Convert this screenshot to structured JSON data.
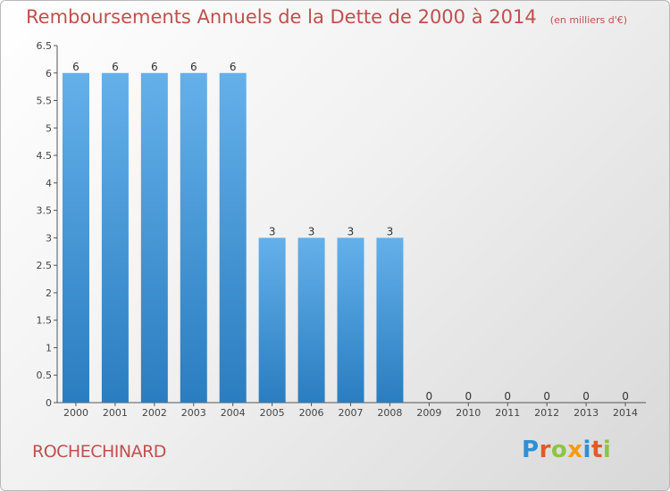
{
  "title": "Remboursements Annuels de la Dette de 2000 à 2014",
  "unit": "(en milliers d'€)",
  "commune": "ROCHECHINARD",
  "logo": {
    "text": "Proxiti",
    "letters": [
      {
        "char": "P",
        "color": "#2e8fd6"
      },
      {
        "char": "r",
        "color": "#e05a2a"
      },
      {
        "char": "o",
        "color": "#8cc63f"
      },
      {
        "char": "x",
        "color": "#f39c12"
      },
      {
        "char": "i",
        "color": "#2e8fd6"
      },
      {
        "char": "t",
        "color": "#e05a2a"
      },
      {
        "char": "i",
        "color": "#8cc63f"
      }
    ]
  },
  "colors": {
    "bar_top": "#64b0ea",
    "bar_bottom": "#2a7dc0",
    "title": "#c0504d"
  },
  "chart_data": {
    "type": "bar",
    "title": "Remboursements Annuels de la Dette de 2000 à 2014",
    "categories": [
      "2000",
      "2001",
      "2002",
      "2003",
      "2004",
      "2005",
      "2006",
      "2007",
      "2008",
      "2009",
      "2010",
      "2011",
      "2012",
      "2013",
      "2014"
    ],
    "values": [
      6,
      6,
      6,
      6,
      6,
      3,
      3,
      3,
      3,
      0,
      0,
      0,
      0,
      0,
      0
    ],
    "value_labels": [
      "6",
      "6",
      "6",
      "6",
      "6",
      "3",
      "3",
      "3",
      "3",
      "0",
      "0",
      "0",
      "0",
      "0",
      "0"
    ],
    "ylim": [
      0,
      6.5
    ],
    "yticks": [
      "0",
      "0.5",
      "1",
      "1.5",
      "2",
      "2.5",
      "3",
      "3.5",
      "4",
      "4.5",
      "5",
      "5.5",
      "6",
      "6.5"
    ],
    "grid": false,
    "legend": "none"
  }
}
